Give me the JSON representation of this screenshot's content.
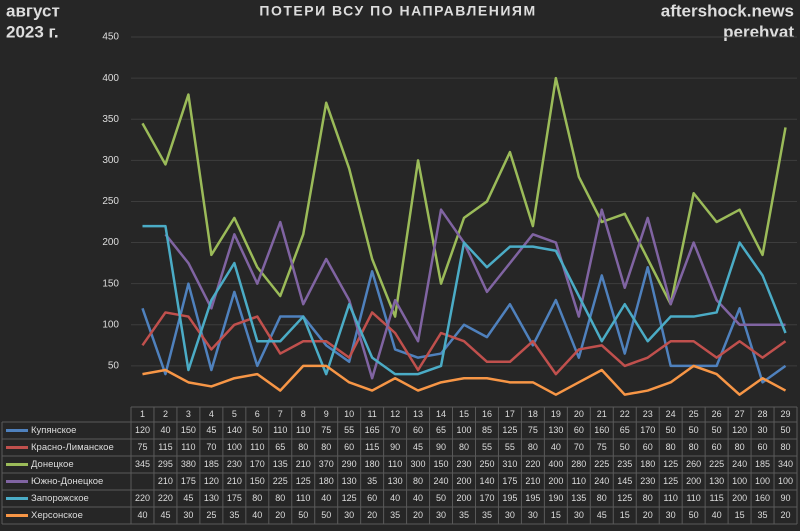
{
  "chart_data": {
    "type": "line",
    "title": "ПОТЕРИ ВСУ ПО НАПРАВЛЕНИЯМ",
    "period": [
      "август",
      "2023 г."
    ],
    "source": [
      "aftershock.news",
      "perehvat"
    ],
    "categories": [
      "1",
      "2",
      "3",
      "4",
      "5",
      "6",
      "7",
      "8",
      "9",
      "10",
      "11",
      "12",
      "13",
      "14",
      "15",
      "16",
      "17",
      "18",
      "19",
      "20",
      "21",
      "22",
      "23",
      "24",
      "25",
      "26",
      "27",
      "28",
      "29"
    ],
    "ylim": [
      0,
      450
    ],
    "yticks": [
      50,
      100,
      150,
      200,
      250,
      300,
      350,
      400,
      450
    ],
    "grid": true,
    "series": [
      {
        "name": "Купянское",
        "color": "#4f81bd",
        "values": [
          120,
          40,
          150,
          45,
          140,
          50,
          110,
          110,
          75,
          55,
          165,
          70,
          60,
          65,
          100,
          85,
          125,
          75,
          130,
          60,
          160,
          65,
          170,
          50,
          50,
          50,
          120,
          30,
          50
        ]
      },
      {
        "name": "Красно-Лиманское",
        "color": "#c0504d",
        "values": [
          75,
          115,
          110,
          70,
          100,
          110,
          65,
          80,
          80,
          60,
          115,
          90,
          45,
          90,
          80,
          55,
          55,
          80,
          40,
          70,
          75,
          50,
          60,
          80,
          80,
          60,
          80,
          60,
          80
        ]
      },
      {
        "name": "Донецкое",
        "color": "#9bbb59",
        "values": [
          345,
          295,
          380,
          185,
          230,
          170,
          135,
          210,
          370,
          290,
          180,
          110,
          300,
          150,
          230,
          250,
          310,
          220,
          400,
          280,
          225,
          235,
          180,
          125,
          260,
          225,
          240,
          185,
          340
        ]
      },
      {
        "name": "Южно-Донецкое",
        "color": "#8064a2",
        "values": [
          null,
          210,
          175,
          120,
          210,
          150,
          225,
          125,
          180,
          130,
          35,
          130,
          80,
          240,
          200,
          140,
          175,
          210,
          200,
          110,
          240,
          145,
          230,
          125,
          200,
          130,
          100,
          100,
          100
        ]
      },
      {
        "name": "Запорожское",
        "color": "#4bacc6",
        "values": [
          220,
          220,
          45,
          130,
          175,
          80,
          80,
          110,
          40,
          125,
          60,
          40,
          40,
          50,
          200,
          170,
          195,
          195,
          190,
          135,
          80,
          125,
          80,
          110,
          110,
          115,
          200,
          160,
          90
        ]
      },
      {
        "name": "Херсонское",
        "color": "#f79646",
        "values": [
          40,
          45,
          30,
          25,
          35,
          40,
          20,
          50,
          50,
          30,
          20,
          35,
          20,
          30,
          35,
          35,
          30,
          30,
          15,
          30,
          45,
          15,
          20,
          30,
          50,
          40,
          15,
          35,
          20
        ]
      }
    ]
  }
}
